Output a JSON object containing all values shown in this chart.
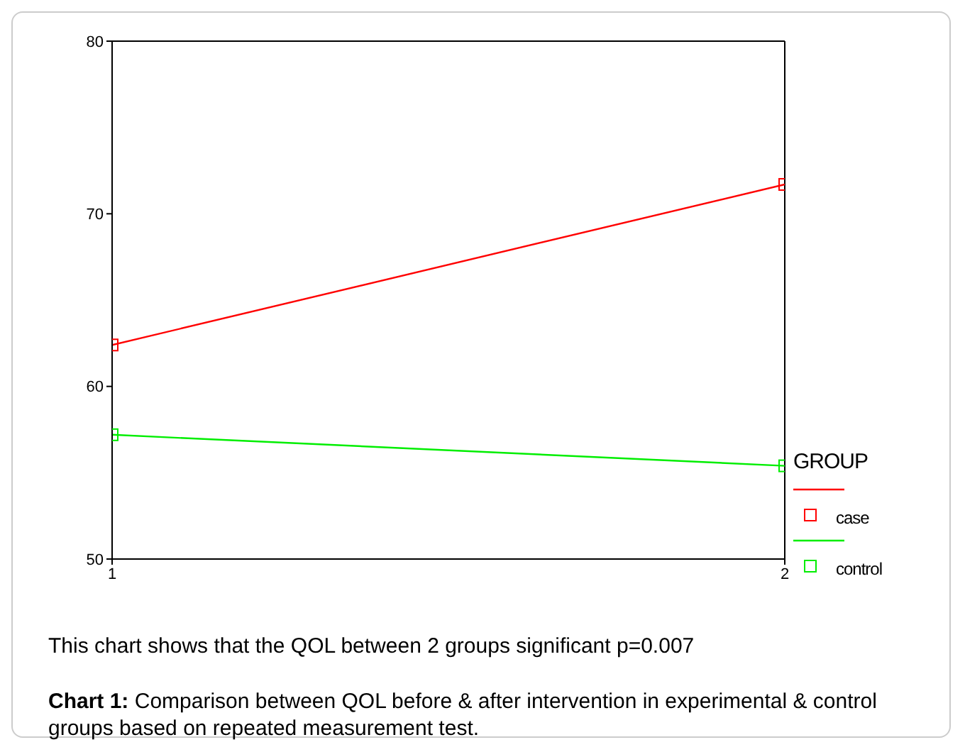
{
  "chart_data": {
    "type": "line",
    "x": [
      1,
      2
    ],
    "xlim": [
      1,
      2
    ],
    "xticks": [
      1,
      2
    ],
    "ylim": [
      50,
      80
    ],
    "yticks": [
      50,
      60,
      70,
      80
    ],
    "legend_title": "GROUP",
    "legend": "bottom right",
    "marker": "square",
    "grid": false,
    "series": [
      {
        "name": "case",
        "color": "#ff0000",
        "values": [
          62.4,
          71.7
        ]
      },
      {
        "name": "control",
        "color": "#00ee00",
        "values": [
          57.2,
          55.4
        ]
      }
    ],
    "annotations": [
      "This chart shows that the QOL between 2 groups significant p=0.007",
      "Chart 1: Comparison between QOL before & after intervention in experimental & control groups based on repeated measurement test."
    ]
  }
}
